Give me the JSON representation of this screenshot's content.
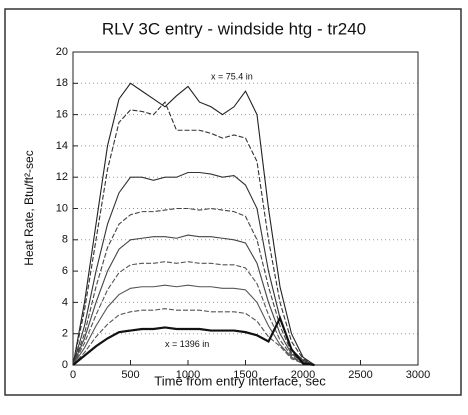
{
  "chart_data": {
    "type": "line",
    "title": "RLV 3C entry - windside htg - tr240",
    "xlabel": "Time from entry interface, sec",
    "ylabel": "Heat Rate, Btu/ft²-sec",
    "annotations": [
      "x = 75.4 in",
      "x = 1396 in"
    ],
    "x": [
      0,
      100,
      200,
      300,
      400,
      500,
      600,
      700,
      800,
      900,
      1000,
      1100,
      1200,
      1300,
      1400,
      1500,
      1600,
      1700,
      1800,
      1900,
      2000,
      2100
    ],
    "series": [
      {
        "color": "#222222",
        "values": [
          0,
          4,
          9,
          14,
          17,
          18,
          17.5,
          17,
          16.5,
          17.2,
          17.8,
          16.8,
          16.5,
          16,
          16.5,
          17.5,
          16,
          10,
          5,
          2,
          0.5,
          0
        ]
      },
      {
        "color": "#333333",
        "values": [
          0,
          3.5,
          8,
          12.5,
          15.5,
          16.3,
          16.2,
          16,
          16.8,
          15,
          15,
          15,
          14.8,
          14.5,
          14.7,
          14.5,
          13,
          8,
          4,
          1.5,
          0.4,
          0
        ]
      },
      {
        "color": "#333333",
        "values": [
          0,
          2.5,
          6,
          9,
          11,
          12,
          12,
          11.8,
          12,
          12,
          12.3,
          12.3,
          12.2,
          12,
          12.1,
          11.5,
          10,
          6,
          3,
          1,
          0.3,
          0
        ]
      },
      {
        "color": "#444444",
        "values": [
          0,
          2,
          5,
          7.5,
          9,
          9.6,
          9.8,
          9.8,
          9.9,
          10,
          10,
          9.9,
          10,
          9.9,
          9.8,
          9.5,
          8,
          5,
          2.5,
          0.8,
          0.2,
          0
        ]
      },
      {
        "color": "#444444",
        "values": [
          0,
          1.7,
          4,
          6,
          7.4,
          8,
          8.1,
          8.2,
          8.2,
          8.1,
          8.3,
          8.2,
          8.2,
          8.1,
          8,
          7.8,
          6.5,
          4,
          2,
          0.7,
          0.2,
          0
        ]
      },
      {
        "color": "#555555",
        "values": [
          0,
          1.4,
          3.2,
          4.8,
          5.9,
          6.4,
          6.5,
          6.5,
          6.6,
          6.5,
          6.6,
          6.5,
          6.5,
          6.4,
          6.4,
          6.2,
          5.2,
          3.2,
          1.6,
          0.6,
          0.1,
          0
        ]
      },
      {
        "color": "#555555",
        "values": [
          0,
          1.1,
          2.5,
          3.7,
          4.5,
          4.9,
          5,
          5,
          5.1,
          5,
          5.1,
          5,
          5,
          4.9,
          4.9,
          4.8,
          4,
          2.5,
          1.3,
          0.5,
          0.1,
          0
        ]
      },
      {
        "color": "#555555",
        "values": [
          0,
          0.8,
          1.8,
          2.6,
          3.2,
          3.4,
          3.5,
          3.5,
          3.6,
          3.5,
          3.5,
          3.5,
          3.4,
          3.4,
          3.4,
          3.3,
          2.8,
          1.8,
          1.2,
          0.4,
          0.1,
          0
        ]
      },
      {
        "color": "#111111",
        "values": [
          0,
          0.6,
          1.2,
          1.7,
          2.1,
          2.2,
          2.3,
          2.3,
          2.4,
          2.3,
          2.3,
          2.3,
          2.2,
          2.2,
          2.2,
          2.1,
          1.9,
          1.5,
          3,
          1,
          0.1,
          0
        ]
      }
    ],
    "xlim": [
      0,
      3000
    ],
    "xticks": [
      0,
      500,
      1000,
      1500,
      2000,
      2500,
      3000
    ],
    "ylim": [
      0,
      20
    ],
    "yticks": [
      0,
      2,
      4,
      6,
      8,
      10,
      12,
      14,
      16,
      18,
      20
    ],
    "grid": true
  }
}
